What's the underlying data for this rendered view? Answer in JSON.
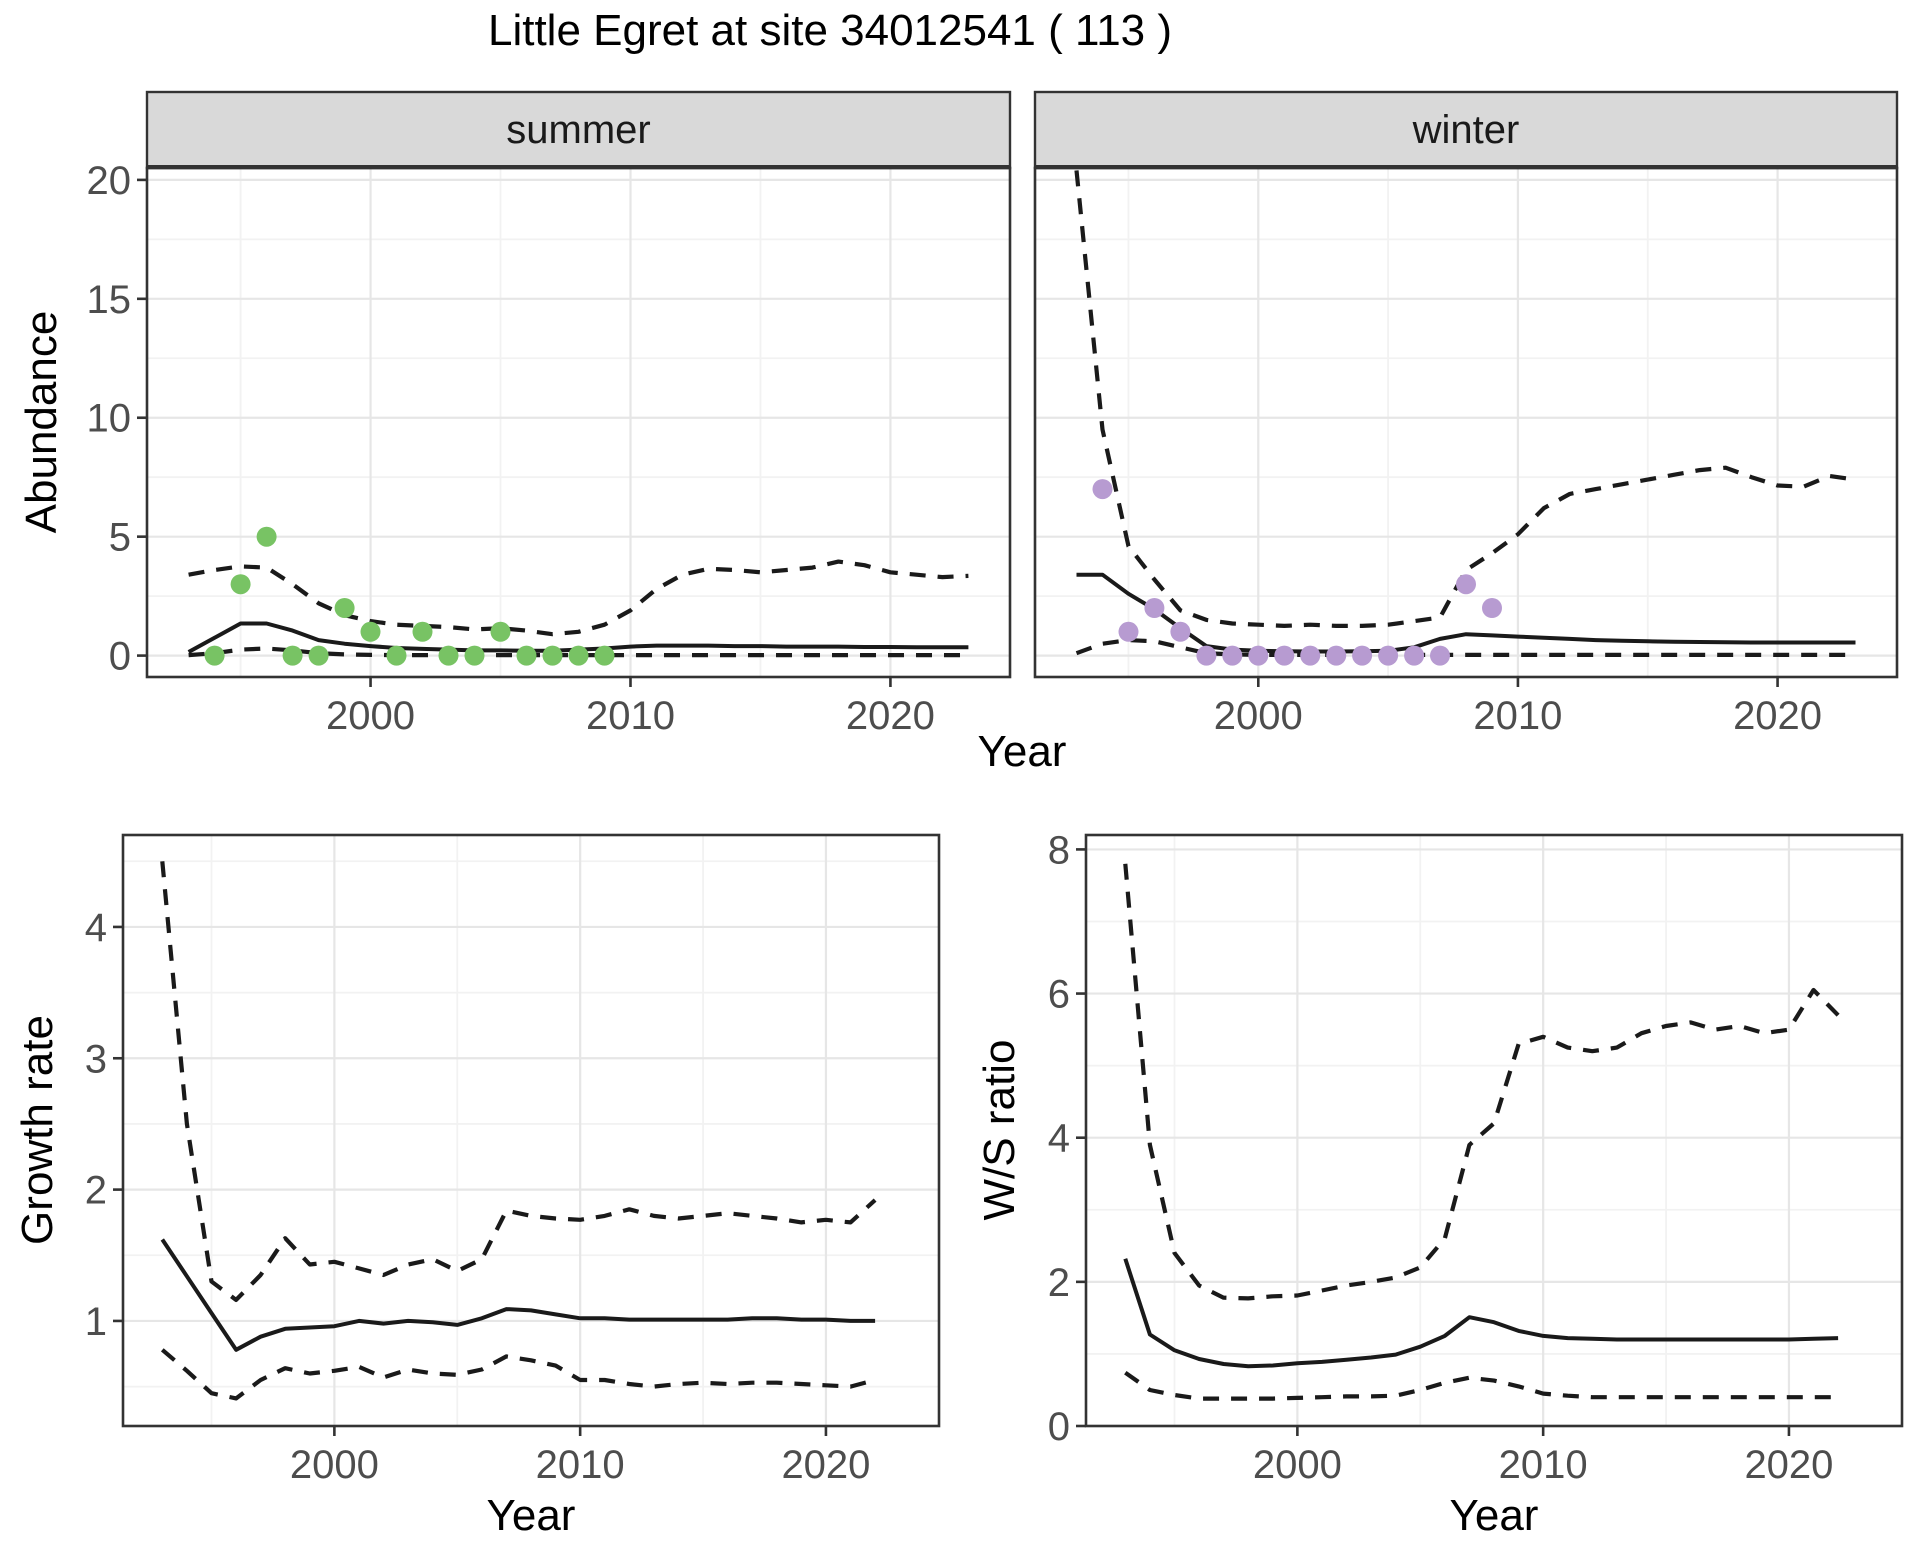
{
  "title": "Little Egret at site 34012541 ( 113 )",
  "colors": {
    "panel_bg": "#ffffff",
    "strip_bg": "#d9d9d9",
    "panel_border": "#333333",
    "grid_major": "#e6e6e6",
    "grid_minor": "#f2f2f2",
    "line": "#1a1a1a",
    "tick_label": "#4d4d4d",
    "point_summer": "#78c364",
    "point_winter": "#b79bd1"
  },
  "chart_data": [
    {
      "id": "abundance-summer",
      "type": "line+scatter",
      "facet": "summer",
      "xlabel": "Year",
      "ylabel": "Abundance",
      "xlim": [
        1991.4,
        2024.6
      ],
      "ylim": [
        -0.9,
        20.5
      ],
      "xticks": [
        2000,
        2010,
        2020
      ],
      "xticks_minor": [
        1995,
        2005,
        2015
      ],
      "yticks": [
        0,
        5,
        10,
        15,
        20
      ],
      "yticks_minor": [
        2.5,
        7.5,
        12.5,
        17.5
      ],
      "show_yticklabels": true,
      "point_color": "#78c364",
      "years": [
        1993,
        1994,
        1995,
        1996,
        1997,
        1998,
        1999,
        2000,
        2001,
        2002,
        2003,
        2004,
        2005,
        2006,
        2007,
        2008,
        2009,
        2010,
        2011,
        2012,
        2013,
        2014,
        2015,
        2016,
        2017,
        2018,
        2019,
        2020,
        2021,
        2022,
        2023
      ],
      "fit": [
        0.15,
        0.75,
        1.35,
        1.35,
        1.05,
        0.65,
        0.5,
        0.4,
        0.32,
        0.28,
        0.25,
        0.22,
        0.22,
        0.2,
        0.2,
        0.25,
        0.3,
        0.38,
        0.42,
        0.42,
        0.42,
        0.4,
        0.4,
        0.38,
        0.38,
        0.38,
        0.36,
        0.36,
        0.35,
        0.35,
        0.35
      ],
      "upper": [
        3.4,
        3.6,
        3.75,
        3.7,
        3.0,
        2.2,
        1.7,
        1.45,
        1.3,
        1.25,
        1.2,
        1.1,
        1.15,
        1.05,
        0.9,
        1.0,
        1.3,
        1.9,
        2.8,
        3.4,
        3.65,
        3.6,
        3.5,
        3.6,
        3.7,
        3.95,
        3.8,
        3.5,
        3.4,
        3.3,
        3.35
      ],
      "lower": [
        0.02,
        0.1,
        0.25,
        0.3,
        0.22,
        0.1,
        0.05,
        0.03,
        0.02,
        0.02,
        0.02,
        0.02,
        0.02,
        0.02,
        0.02,
        0.02,
        0.02,
        0.02,
        0.02,
        0.02,
        0.02,
        0.02,
        0.02,
        0.02,
        0.02,
        0.02,
        0.02,
        0.02,
        0.02,
        0.02,
        0.02
      ],
      "observed": {
        "years": [
          1994,
          1995,
          1996,
          1997,
          1998,
          1999,
          2000,
          2001,
          2002,
          2003,
          2004,
          2005,
          2006,
          2007,
          2008,
          2009
        ],
        "values": [
          0,
          3,
          5,
          0,
          0,
          2,
          1,
          0,
          1,
          0,
          0,
          1,
          0,
          0,
          0,
          0
        ]
      }
    },
    {
      "id": "abundance-winter",
      "type": "line+scatter",
      "facet": "winter",
      "xlabel": "Year",
      "ylabel": "Abundance",
      "xlim": [
        1991.4,
        2024.6
      ],
      "ylim": [
        -0.9,
        20.5
      ],
      "xticks": [
        2000,
        2010,
        2020
      ],
      "xticks_minor": [
        1995,
        2005,
        2015
      ],
      "yticks": [
        0,
        5,
        10,
        15,
        20
      ],
      "yticks_minor": [
        2.5,
        7.5,
        12.5,
        17.5
      ],
      "show_yticklabels": false,
      "point_color": "#b79bd1",
      "years": [
        1993,
        1994,
        1995,
        1996,
        1997,
        1998,
        1999,
        2000,
        2001,
        2002,
        2003,
        2004,
        2005,
        2006,
        2007,
        2008,
        2009,
        2010,
        2011,
        2012,
        2013,
        2014,
        2015,
        2016,
        2017,
        2018,
        2019,
        2020,
        2021,
        2022,
        2023
      ],
      "fit": [
        3.4,
        3.4,
        2.6,
        1.95,
        1.15,
        0.4,
        0.25,
        0.2,
        0.18,
        0.17,
        0.17,
        0.18,
        0.2,
        0.35,
        0.7,
        0.9,
        0.85,
        0.8,
        0.75,
        0.7,
        0.65,
        0.62,
        0.6,
        0.58,
        0.57,
        0.56,
        0.55,
        0.55,
        0.55,
        0.55,
        0.55
      ],
      "upper": [
        20.4,
        9.5,
        4.6,
        3.2,
        1.9,
        1.5,
        1.35,
        1.3,
        1.25,
        1.3,
        1.25,
        1.25,
        1.3,
        1.45,
        1.6,
        3.6,
        4.3,
        5.1,
        6.2,
        6.8,
        7.0,
        7.2,
        7.4,
        7.6,
        7.8,
        7.9,
        7.5,
        7.15,
        7.1,
        7.55,
        7.4
      ],
      "lower": [
        0.1,
        0.5,
        0.65,
        0.6,
        0.35,
        0.1,
        0.05,
        0.03,
        0.03,
        0.03,
        0.03,
        0.03,
        0.03,
        0.03,
        0.03,
        0.03,
        0.03,
        0.03,
        0.03,
        0.03,
        0.03,
        0.03,
        0.03,
        0.03,
        0.03,
        0.03,
        0.03,
        0.03,
        0.03,
        0.03,
        0.03
      ],
      "observed": {
        "years": [
          1994,
          1995,
          1996,
          1997,
          1998,
          1999,
          2000,
          2001,
          2002,
          2003,
          2004,
          2005,
          2006,
          2007,
          2008,
          2009
        ],
        "values": [
          7,
          1,
          2,
          1,
          0,
          0,
          0,
          0,
          0,
          0,
          0,
          0,
          0,
          0,
          3,
          2
        ]
      }
    },
    {
      "id": "growth-rate",
      "type": "line",
      "facet": null,
      "xlabel": "Year",
      "ylabel": "Growth rate",
      "xlim": [
        1991.4,
        2024.6
      ],
      "ylim": [
        0.2,
        4.7
      ],
      "xticks": [
        2000,
        2010,
        2020
      ],
      "xticks_minor": [
        1995,
        2005,
        2015
      ],
      "yticks": [
        1,
        2,
        3,
        4
      ],
      "yticks_minor": [
        0.5,
        1.5,
        2.5,
        3.5,
        4.5
      ],
      "show_yticklabels": true,
      "years": [
        1993,
        1994,
        1995,
        1996,
        1997,
        1998,
        1999,
        2000,
        2001,
        2002,
        2003,
        2004,
        2005,
        2006,
        2007,
        2008,
        2009,
        2010,
        2011,
        2012,
        2013,
        2014,
        2015,
        2016,
        2017,
        2018,
        2019,
        2020,
        2021,
        2022
      ],
      "fit": [
        1.62,
        1.34,
        1.06,
        0.78,
        0.88,
        0.94,
        0.95,
        0.96,
        1.0,
        0.98,
        1.0,
        0.99,
        0.97,
        1.02,
        1.09,
        1.08,
        1.05,
        1.02,
        1.02,
        1.01,
        1.01,
        1.01,
        1.01,
        1.01,
        1.02,
        1.02,
        1.01,
        1.01,
        1.0,
        1.0
      ],
      "upper": [
        4.5,
        2.5,
        1.3,
        1.16,
        1.35,
        1.63,
        1.43,
        1.45,
        1.4,
        1.35,
        1.43,
        1.47,
        1.38,
        1.47,
        1.84,
        1.8,
        1.78,
        1.77,
        1.8,
        1.85,
        1.8,
        1.78,
        1.8,
        1.82,
        1.8,
        1.78,
        1.75,
        1.77,
        1.75,
        1.92
      ],
      "lower": [
        0.78,
        0.62,
        0.45,
        0.41,
        0.55,
        0.64,
        0.6,
        0.62,
        0.65,
        0.57,
        0.63,
        0.6,
        0.59,
        0.63,
        0.73,
        0.7,
        0.66,
        0.55,
        0.55,
        0.52,
        0.5,
        0.52,
        0.53,
        0.52,
        0.53,
        0.53,
        0.52,
        0.51,
        0.5,
        0.55
      ]
    },
    {
      "id": "ws-ratio",
      "type": "line",
      "facet": null,
      "xlabel": "Year",
      "ylabel": "W/S ratio",
      "xlim": [
        1991.4,
        2024.6
      ],
      "ylim": [
        0.0,
        8.2
      ],
      "xticks": [
        2000,
        2010,
        2020
      ],
      "xticks_minor": [
        1995,
        2005,
        2015
      ],
      "yticks": [
        0,
        2,
        4,
        6,
        8
      ],
      "yticks_minor": [
        1,
        3,
        5,
        7
      ],
      "show_yticklabels": true,
      "years": [
        1993,
        1994,
        1995,
        1996,
        1997,
        1998,
        1999,
        2000,
        2001,
        2002,
        2003,
        2004,
        2005,
        2006,
        2007,
        2008,
        2009,
        2010,
        2011,
        2012,
        2013,
        2014,
        2015,
        2016,
        2017,
        2018,
        2019,
        2020,
        2021,
        2022
      ],
      "fit": [
        2.32,
        1.27,
        1.05,
        0.93,
        0.86,
        0.83,
        0.84,
        0.87,
        0.89,
        0.92,
        0.95,
        0.99,
        1.1,
        1.25,
        1.51,
        1.44,
        1.32,
        1.25,
        1.22,
        1.21,
        1.2,
        1.2,
        1.2,
        1.2,
        1.2,
        1.2,
        1.2,
        1.2,
        1.21,
        1.22
      ],
      "upper": [
        7.8,
        3.9,
        2.4,
        1.95,
        1.78,
        1.77,
        1.8,
        1.81,
        1.88,
        1.95,
        2.0,
        2.06,
        2.2,
        2.6,
        3.9,
        4.2,
        5.3,
        5.4,
        5.25,
        5.2,
        5.25,
        5.45,
        5.55,
        5.6,
        5.5,
        5.55,
        5.45,
        5.5,
        6.05,
        5.7
      ],
      "lower": [
        0.74,
        0.5,
        0.43,
        0.38,
        0.38,
        0.38,
        0.38,
        0.39,
        0.4,
        0.41,
        0.41,
        0.42,
        0.5,
        0.6,
        0.67,
        0.63,
        0.55,
        0.45,
        0.42,
        0.4,
        0.4,
        0.4,
        0.4,
        0.4,
        0.4,
        0.4,
        0.4,
        0.4,
        0.4,
        0.4
      ]
    }
  ]
}
